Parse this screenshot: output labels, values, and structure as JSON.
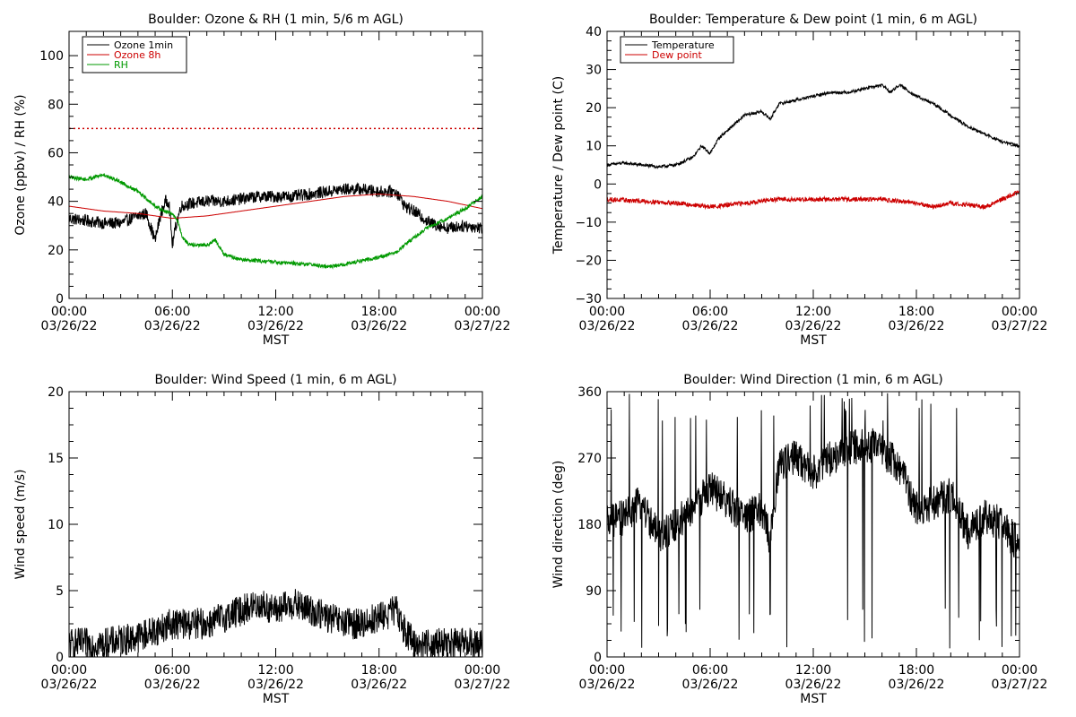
{
  "chart_data": [
    {
      "type": "line",
      "title": "Boulder: Ozone & RH (1 min, 5/6 m AGL)",
      "xlabel": "MST",
      "ylabel": "Ozone (ppbv) / RH (%)",
      "xlim": [
        0,
        24
      ],
      "ylim": [
        0,
        110
      ],
      "x_ticks": [
        {
          "x": 0,
          "time": "00:00",
          "date": "03/26/22"
        },
        {
          "x": 6,
          "time": "06:00",
          "date": "03/26/22"
        },
        {
          "x": 12,
          "time": "12:00",
          "date": "03/26/22"
        },
        {
          "x": 18,
          "time": "18:00",
          "date": "03/26/22"
        },
        {
          "x": 24,
          "time": "00:00",
          "date": "03/27/22"
        }
      ],
      "y_ticks": [
        0,
        20,
        40,
        60,
        80,
        100
      ],
      "y_tick_labels": [
        "0",
        "20",
        "40",
        "60",
        "80",
        "100"
      ],
      "legend_position": "top-left",
      "reference_lines": [
        {
          "y": 70,
          "color": "#cc0000",
          "style": "dotted"
        }
      ],
      "series": [
        {
          "name": "Ozone 1min",
          "color": "#000000",
          "noise": 2.5,
          "x": [
            0,
            1,
            2,
            3,
            4,
            4.5,
            4.8,
            5,
            5.3,
            5.6,
            5.8,
            6,
            6.2,
            6.5,
            7,
            8,
            9,
            10,
            11,
            12,
            13,
            14,
            15,
            16,
            17,
            18,
            19,
            19.5,
            20,
            21,
            22,
            23,
            24
          ],
          "y": [
            33,
            32,
            31,
            31,
            34,
            35,
            28,
            24,
            34,
            40,
            40,
            22,
            30,
            38,
            39,
            40,
            40,
            41,
            42,
            42,
            42,
            43,
            44,
            45,
            45,
            44,
            44,
            38,
            36,
            31,
            29,
            30,
            29
          ]
        },
        {
          "name": "Ozone 8h",
          "color": "#cc0000",
          "noise": 0,
          "x": [
            0,
            2,
            4,
            6,
            8,
            10,
            12,
            14,
            16,
            18,
            20,
            22,
            24
          ],
          "y": [
            38,
            36,
            35,
            33,
            34,
            36,
            38,
            40,
            42,
            43,
            42,
            40,
            37
          ]
        },
        {
          "name": "RH",
          "color": "#009900",
          "noise": 0.8,
          "x": [
            0,
            1,
            2,
            3,
            4,
            5,
            5.5,
            6,
            6.3,
            6.6,
            7,
            7.5,
            8,
            8.5,
            9,
            10,
            12,
            14,
            15,
            16,
            18,
            19,
            20,
            21,
            22,
            23,
            24
          ],
          "y": [
            50,
            49,
            51,
            48,
            44,
            38,
            36,
            35,
            32,
            25,
            22,
            22,
            22,
            24,
            18,
            16,
            15,
            14,
            13,
            14,
            17,
            19,
            25,
            30,
            33,
            37,
            42
          ]
        }
      ]
    },
    {
      "type": "line",
      "title": "Boulder: Temperature & Dew point (1 min, 6 m AGL)",
      "xlabel": "MST",
      "ylabel": "Temperature / Dew point (C)",
      "xlim": [
        0,
        24
      ],
      "ylim": [
        -30,
        40
      ],
      "x_ticks": [
        {
          "x": 0,
          "time": "00:00",
          "date": "03/26/22"
        },
        {
          "x": 6,
          "time": "06:00",
          "date": "03/26/22"
        },
        {
          "x": 12,
          "time": "12:00",
          "date": "03/26/22"
        },
        {
          "x": 18,
          "time": "18:00",
          "date": "03/26/22"
        },
        {
          "x": 24,
          "time": "00:00",
          "date": "03/27/22"
        }
      ],
      "y_ticks": [
        -30,
        -20,
        -10,
        0,
        10,
        20,
        30,
        40
      ],
      "y_tick_labels": [
        "−30",
        "−20",
        "−10",
        "0",
        "10",
        "20",
        "30",
        "40"
      ],
      "legend_position": "top-left",
      "series": [
        {
          "name": "Temperature",
          "color": "#000000",
          "noise": 0.4,
          "x": [
            0,
            1,
            2,
            3,
            4,
            5,
            5.5,
            6,
            6.5,
            7,
            8,
            9,
            9.5,
            10,
            11,
            12,
            13,
            14,
            15,
            16,
            16.5,
            17,
            18,
            19,
            20,
            21,
            22,
            23,
            24
          ],
          "y": [
            5,
            5.5,
            5,
            4.5,
            5,
            7,
            10,
            8,
            12,
            14,
            18,
            19,
            17,
            21,
            22,
            23,
            24,
            24,
            25,
            26,
            24,
            26,
            23,
            21,
            18,
            15,
            13,
            11,
            10
          ]
        },
        {
          "name": "Dew point",
          "color": "#cc0000",
          "noise": 0.6,
          "x": [
            0,
            2,
            4,
            6,
            8,
            10,
            12,
            14,
            16,
            18,
            19,
            20,
            22,
            24
          ],
          "y": [
            -4,
            -4.5,
            -5,
            -6,
            -5,
            -4,
            -4,
            -4,
            -4,
            -5,
            -6,
            -5,
            -6,
            -2
          ]
        }
      ]
    },
    {
      "type": "line",
      "title": "Boulder: Wind Speed (1 min, 6 m AGL)",
      "xlabel": "MST",
      "ylabel": "Wind speed (m/s)",
      "xlim": [
        0,
        24
      ],
      "ylim": [
        0,
        20
      ],
      "x_ticks": [
        {
          "x": 0,
          "time": "00:00",
          "date": "03/26/22"
        },
        {
          "x": 6,
          "time": "06:00",
          "date": "03/26/22"
        },
        {
          "x": 12,
          "time": "12:00",
          "date": "03/26/22"
        },
        {
          "x": 18,
          "time": "18:00",
          "date": "03/26/22"
        },
        {
          "x": 24,
          "time": "00:00",
          "date": "03/27/22"
        }
      ],
      "y_ticks": [
        0,
        5,
        10,
        15,
        20
      ],
      "y_tick_labels": [
        "0",
        "5",
        "10",
        "15",
        "20"
      ],
      "series": [
        {
          "name": "",
          "color": "#000000",
          "noise": 1.2,
          "floor": 0,
          "x": [
            0,
            2,
            4,
            5,
            6,
            7,
            8,
            9,
            10,
            11,
            12,
            13,
            14,
            15,
            16,
            17,
            18,
            19,
            19.5,
            20,
            22,
            24
          ],
          "y": [
            1,
            1,
            1.5,
            2,
            2.5,
            2.5,
            2.5,
            3,
            3.5,
            4,
            3.5,
            4,
            3.5,
            3,
            2.5,
            2.5,
            3,
            3.5,
            2,
            1,
            1,
            1
          ]
        }
      ]
    },
    {
      "type": "line",
      "title": "Boulder: Wind Direction (1 min, 6 m AGL)",
      "xlabel": "MST",
      "ylabel": "Wind direction (deg)",
      "xlim": [
        0,
        24
      ],
      "ylim": [
        0,
        360
      ],
      "x_ticks": [
        {
          "x": 0,
          "time": "00:00",
          "date": "03/26/22"
        },
        {
          "x": 6,
          "time": "06:00",
          "date": "03/26/22"
        },
        {
          "x": 12,
          "time": "12:00",
          "date": "03/26/22"
        },
        {
          "x": 18,
          "time": "18:00",
          "date": "03/26/22"
        },
        {
          "x": 24,
          "time": "00:00",
          "date": "03/27/22"
        }
      ],
      "y_ticks": [
        0,
        90,
        180,
        270,
        360
      ],
      "y_tick_labels": [
        "0",
        "90",
        "180",
        "270",
        "360"
      ],
      "series": [
        {
          "name": "",
          "color": "#000000",
          "noise": 25,
          "spikes": 0.05,
          "floor": 0,
          "ceil": 360,
          "x": [
            0,
            1,
            2,
            3,
            4,
            5,
            6,
            7,
            8,
            9,
            9.5,
            10,
            11,
            12,
            13,
            14,
            15,
            16,
            17,
            18,
            19,
            20,
            21,
            22,
            23,
            24
          ],
          "y": [
            180,
            190,
            210,
            160,
            180,
            200,
            230,
            210,
            190,
            200,
            160,
            260,
            270,
            250,
            270,
            280,
            290,
            280,
            260,
            200,
            210,
            220,
            170,
            190,
            180,
            150
          ]
        }
      ]
    }
  ]
}
